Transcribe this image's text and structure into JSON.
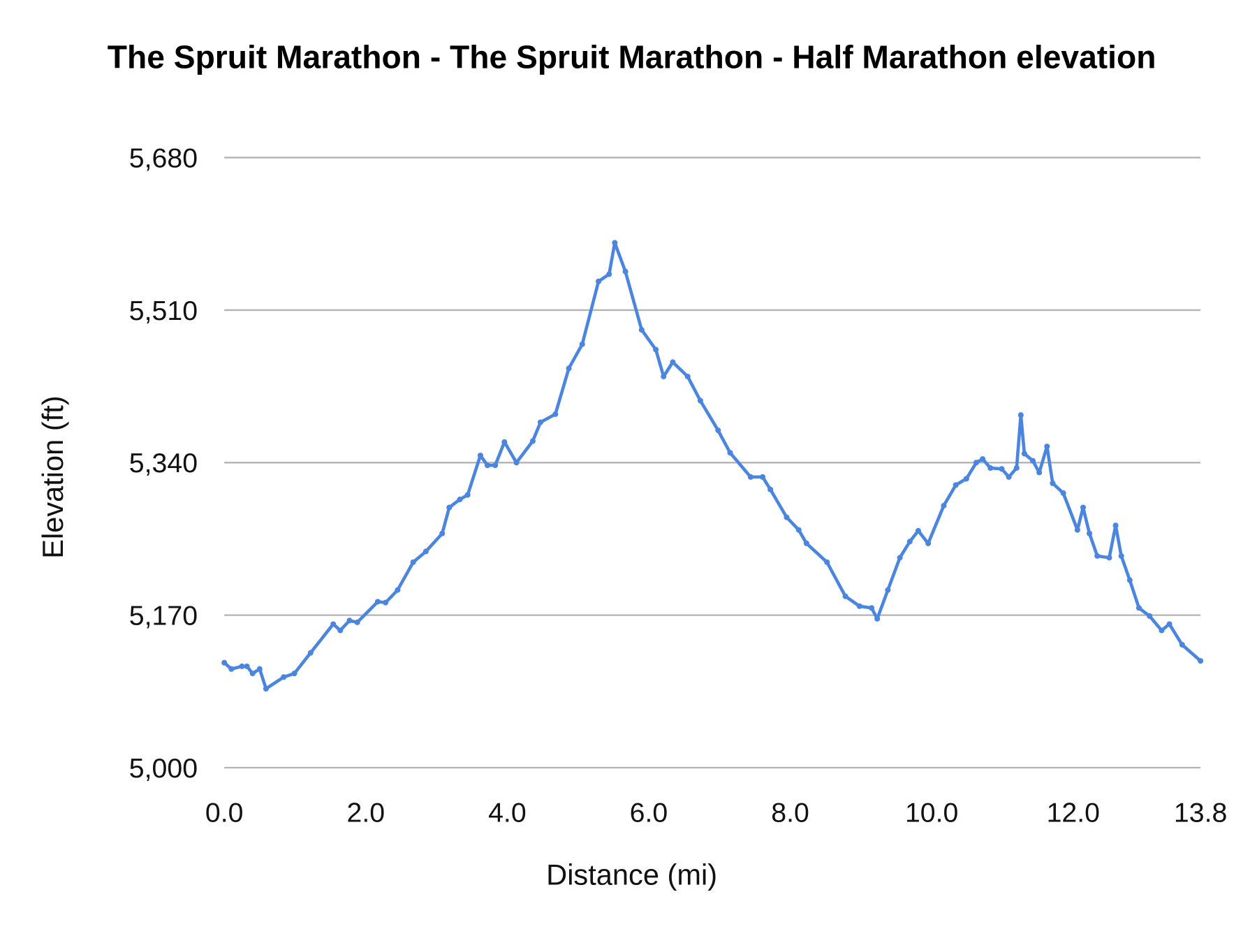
{
  "chart_data": {
    "type": "line",
    "title": "The Spruit Marathon - The Spruit Marathon - Half Marathon elevation",
    "xlabel": "Distance (mi)",
    "ylabel": "Elevation (ft)",
    "xlim": [
      0,
      13.8
    ],
    "ylim": [
      5000,
      5680
    ],
    "x_ticks": [
      "0.0",
      "2.0",
      "4.0",
      "6.0",
      "8.0",
      "10.0",
      "12.0",
      "13.8"
    ],
    "x_tick_values": [
      0,
      2,
      4,
      6,
      8,
      10,
      12,
      13.8
    ],
    "y_ticks": [
      "5,000",
      "5,170",
      "5,340",
      "5,510",
      "5,680"
    ],
    "y_tick_values": [
      5000,
      5170,
      5340,
      5510,
      5680
    ],
    "grid": true,
    "legend": "none",
    "color": "#4a86e0",
    "series": [
      {
        "name": "Elevation",
        "x": [
          0,
          0.1,
          0.25,
          0.32,
          0.4,
          0.5,
          0.59,
          0.84,
          0.99,
          1.22,
          1.54,
          1.64,
          1.77,
          1.88,
          2.17,
          2.28,
          2.45,
          2.67,
          2.85,
          3.08,
          3.18,
          3.33,
          3.44,
          3.62,
          3.72,
          3.83,
          3.96,
          4.13,
          4.36,
          4.47,
          4.68,
          4.87,
          5.06,
          5.29,
          5.44,
          5.52,
          5.67,
          5.9,
          6.1,
          6.21,
          6.34,
          6.55,
          6.73,
          6.98,
          7.15,
          7.44,
          7.61,
          7.72,
          7.95,
          8.12,
          8.23,
          8.52,
          8.78,
          8.98,
          9.15,
          9.23,
          9.38,
          9.55,
          9.69,
          9.81,
          9.95,
          10.17,
          10.34,
          10.49,
          10.63,
          10.72,
          10.83,
          10.99,
          11.09,
          11.2,
          11.26,
          11.31,
          11.43,
          11.52,
          11.63,
          11.71,
          11.86,
          12.06,
          12.14,
          12.23,
          12.34,
          12.51,
          12.6,
          12.68,
          12.8,
          12.93,
          13.08,
          13.25,
          13.36,
          13.54,
          13.8
        ],
        "y": [
          5117,
          5110,
          5113,
          5113,
          5105,
          5110,
          5088,
          5101,
          5105,
          5128,
          5160,
          5153,
          5164,
          5162,
          5185,
          5184,
          5198,
          5229,
          5241,
          5261,
          5290,
          5299,
          5304,
          5348,
          5337,
          5337,
          5363,
          5340,
          5364,
          5385,
          5394,
          5445,
          5472,
          5542,
          5550,
          5585,
          5553,
          5488,
          5466,
          5436,
          5452,
          5436,
          5409,
          5376,
          5351,
          5324,
          5324,
          5310,
          5279,
          5265,
          5250,
          5229,
          5191,
          5180,
          5178,
          5166,
          5198,
          5234,
          5252,
          5264,
          5250,
          5292,
          5315,
          5322,
          5340,
          5344,
          5334,
          5333,
          5324,
          5334,
          5393,
          5350,
          5342,
          5329,
          5358,
          5317,
          5306,
          5265,
          5290,
          5261,
          5236,
          5234,
          5270,
          5236,
          5209,
          5178,
          5169,
          5153,
          5160,
          5137,
          5119
        ]
      }
    ]
  }
}
